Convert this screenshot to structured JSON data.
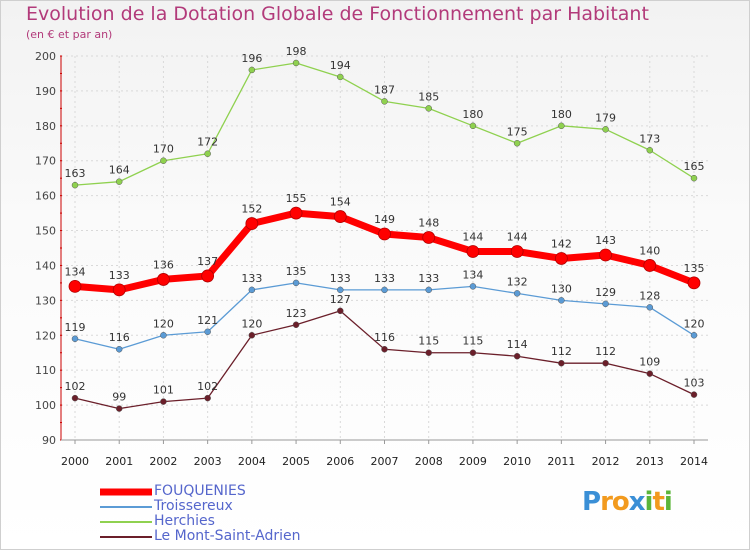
{
  "chart_data": {
    "type": "line",
    "title": "Evolution de la Dotation Globale de Fonctionnement par Habitant",
    "subtitle": "(en € et par an)",
    "xlabel": "",
    "ylabel": "",
    "x": [
      2000,
      2001,
      2002,
      2003,
      2004,
      2005,
      2006,
      2007,
      2008,
      2009,
      2010,
      2011,
      2012,
      2013,
      2014
    ],
    "ylim": [
      90,
      200
    ],
    "yticks": [
      90,
      100,
      110,
      120,
      130,
      140,
      150,
      160,
      170,
      180,
      190,
      200
    ],
    "grid": true,
    "legend_position": "bottom-left",
    "series": [
      {
        "name": "FOUQUENIES",
        "color": "#ff0000",
        "values": [
          134,
          133,
          136,
          137,
          152,
          155,
          154,
          149,
          148,
          144,
          144,
          142,
          143,
          140,
          135
        ]
      },
      {
        "name": "Troissereux",
        "color": "#5b9bd5",
        "values": [
          119,
          116,
          120,
          121,
          133,
          135,
          133,
          133,
          133,
          134,
          132,
          130,
          129,
          128,
          120
        ]
      },
      {
        "name": "Herchies",
        "color": "#8fd14f",
        "values": [
          163,
          164,
          170,
          172,
          196,
          198,
          194,
          187,
          185,
          180,
          175,
          180,
          179,
          173,
          165
        ]
      },
      {
        "name": "Le Mont-Saint-Adrien",
        "color": "#6b1f2a",
        "values": [
          102,
          99,
          101,
          102,
          120,
          123,
          127,
          116,
          115,
          115,
          114,
          112,
          112,
          109,
          103
        ]
      }
    ]
  },
  "logo": {
    "letters": [
      "P",
      "r",
      "o",
      "x",
      "i",
      "t",
      "i"
    ],
    "colors": [
      "#3a8fd6",
      "#f29a1e",
      "#f29a1e",
      "#3a8fd6",
      "#5bb53a",
      "#f29a1e",
      "#5bb53a"
    ]
  }
}
